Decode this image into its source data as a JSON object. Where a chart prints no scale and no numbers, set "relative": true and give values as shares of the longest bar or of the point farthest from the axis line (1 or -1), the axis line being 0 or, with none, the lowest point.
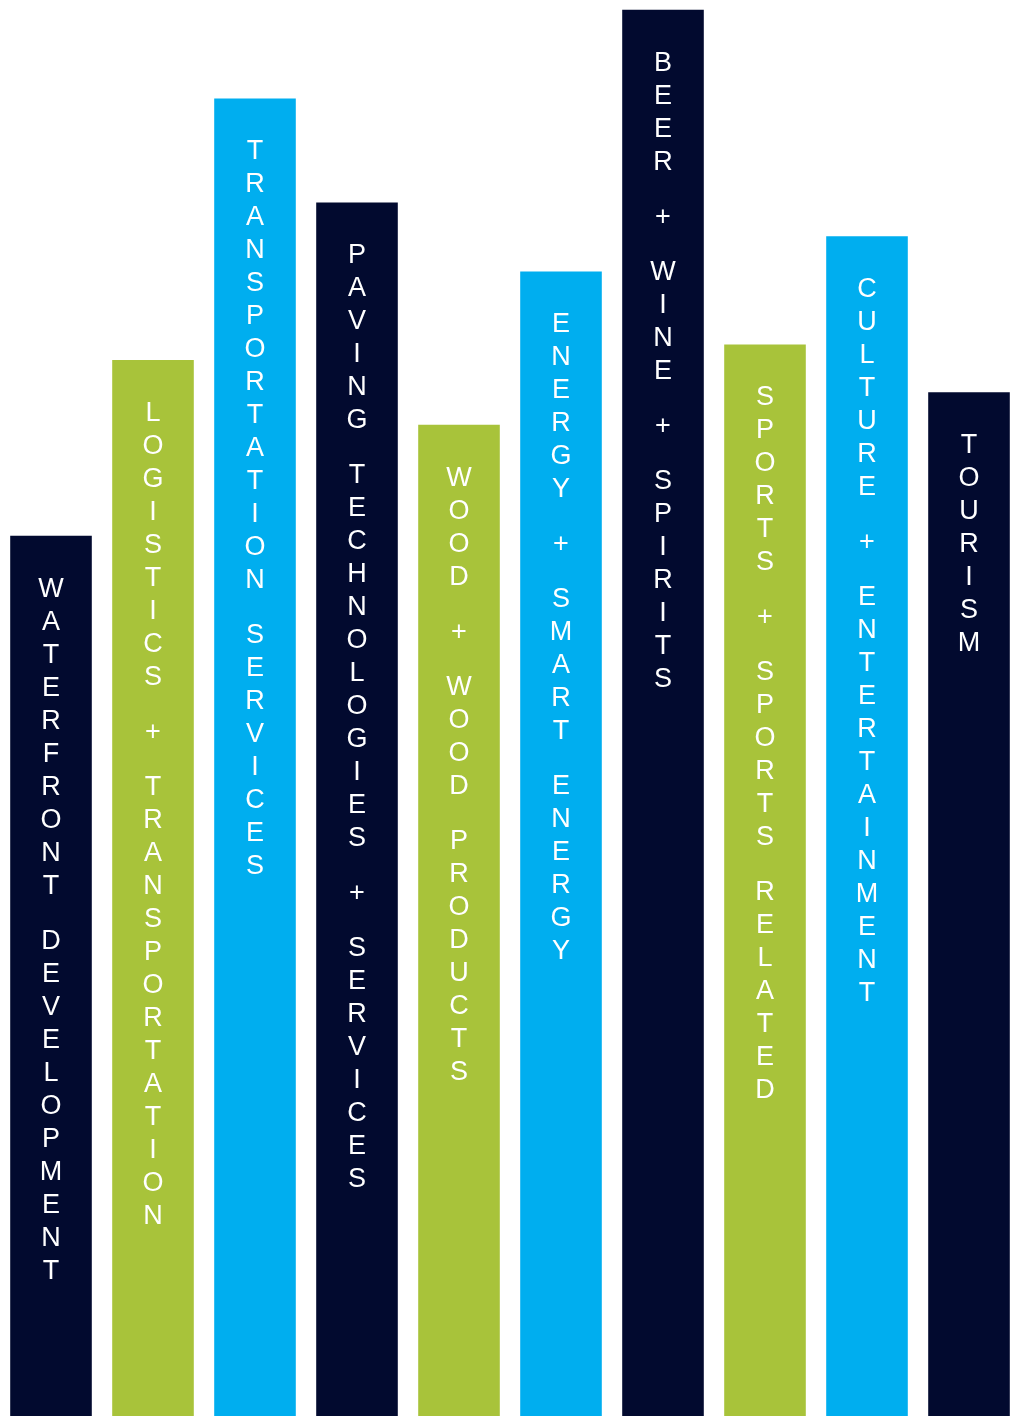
{
  "chart_data": {
    "type": "bar",
    "relative": true,
    "categories": [
      "WATERFRONT DEVELOPMENT",
      "LOGISTICS + TRANSPORTATION",
      "TRANSPORTATION SERVICES",
      "PAVING TECHNOLOGIES + SERVICES",
      "WOOD + WOOD PRODUCTS",
      "ENERGY + SMART ENERGY",
      "BEER + WINE + SPIRITS",
      "SPORTS + SPORTS RELATED",
      "CULTURE + ENTERTAINMENT",
      "TOURISM"
    ],
    "values": [
      0.626,
      0.751,
      0.937,
      0.863,
      0.705,
      0.814,
      1,
      0.762,
      0.839,
      0.728
    ],
    "colors": [
      "#020a2f",
      "#a8c33a",
      "#00aeef",
      "#020a2f",
      "#a8c33a",
      "#00aeef",
      "#020a2f",
      "#a8c33a",
      "#00aeef",
      "#020a2f"
    ]
  }
}
